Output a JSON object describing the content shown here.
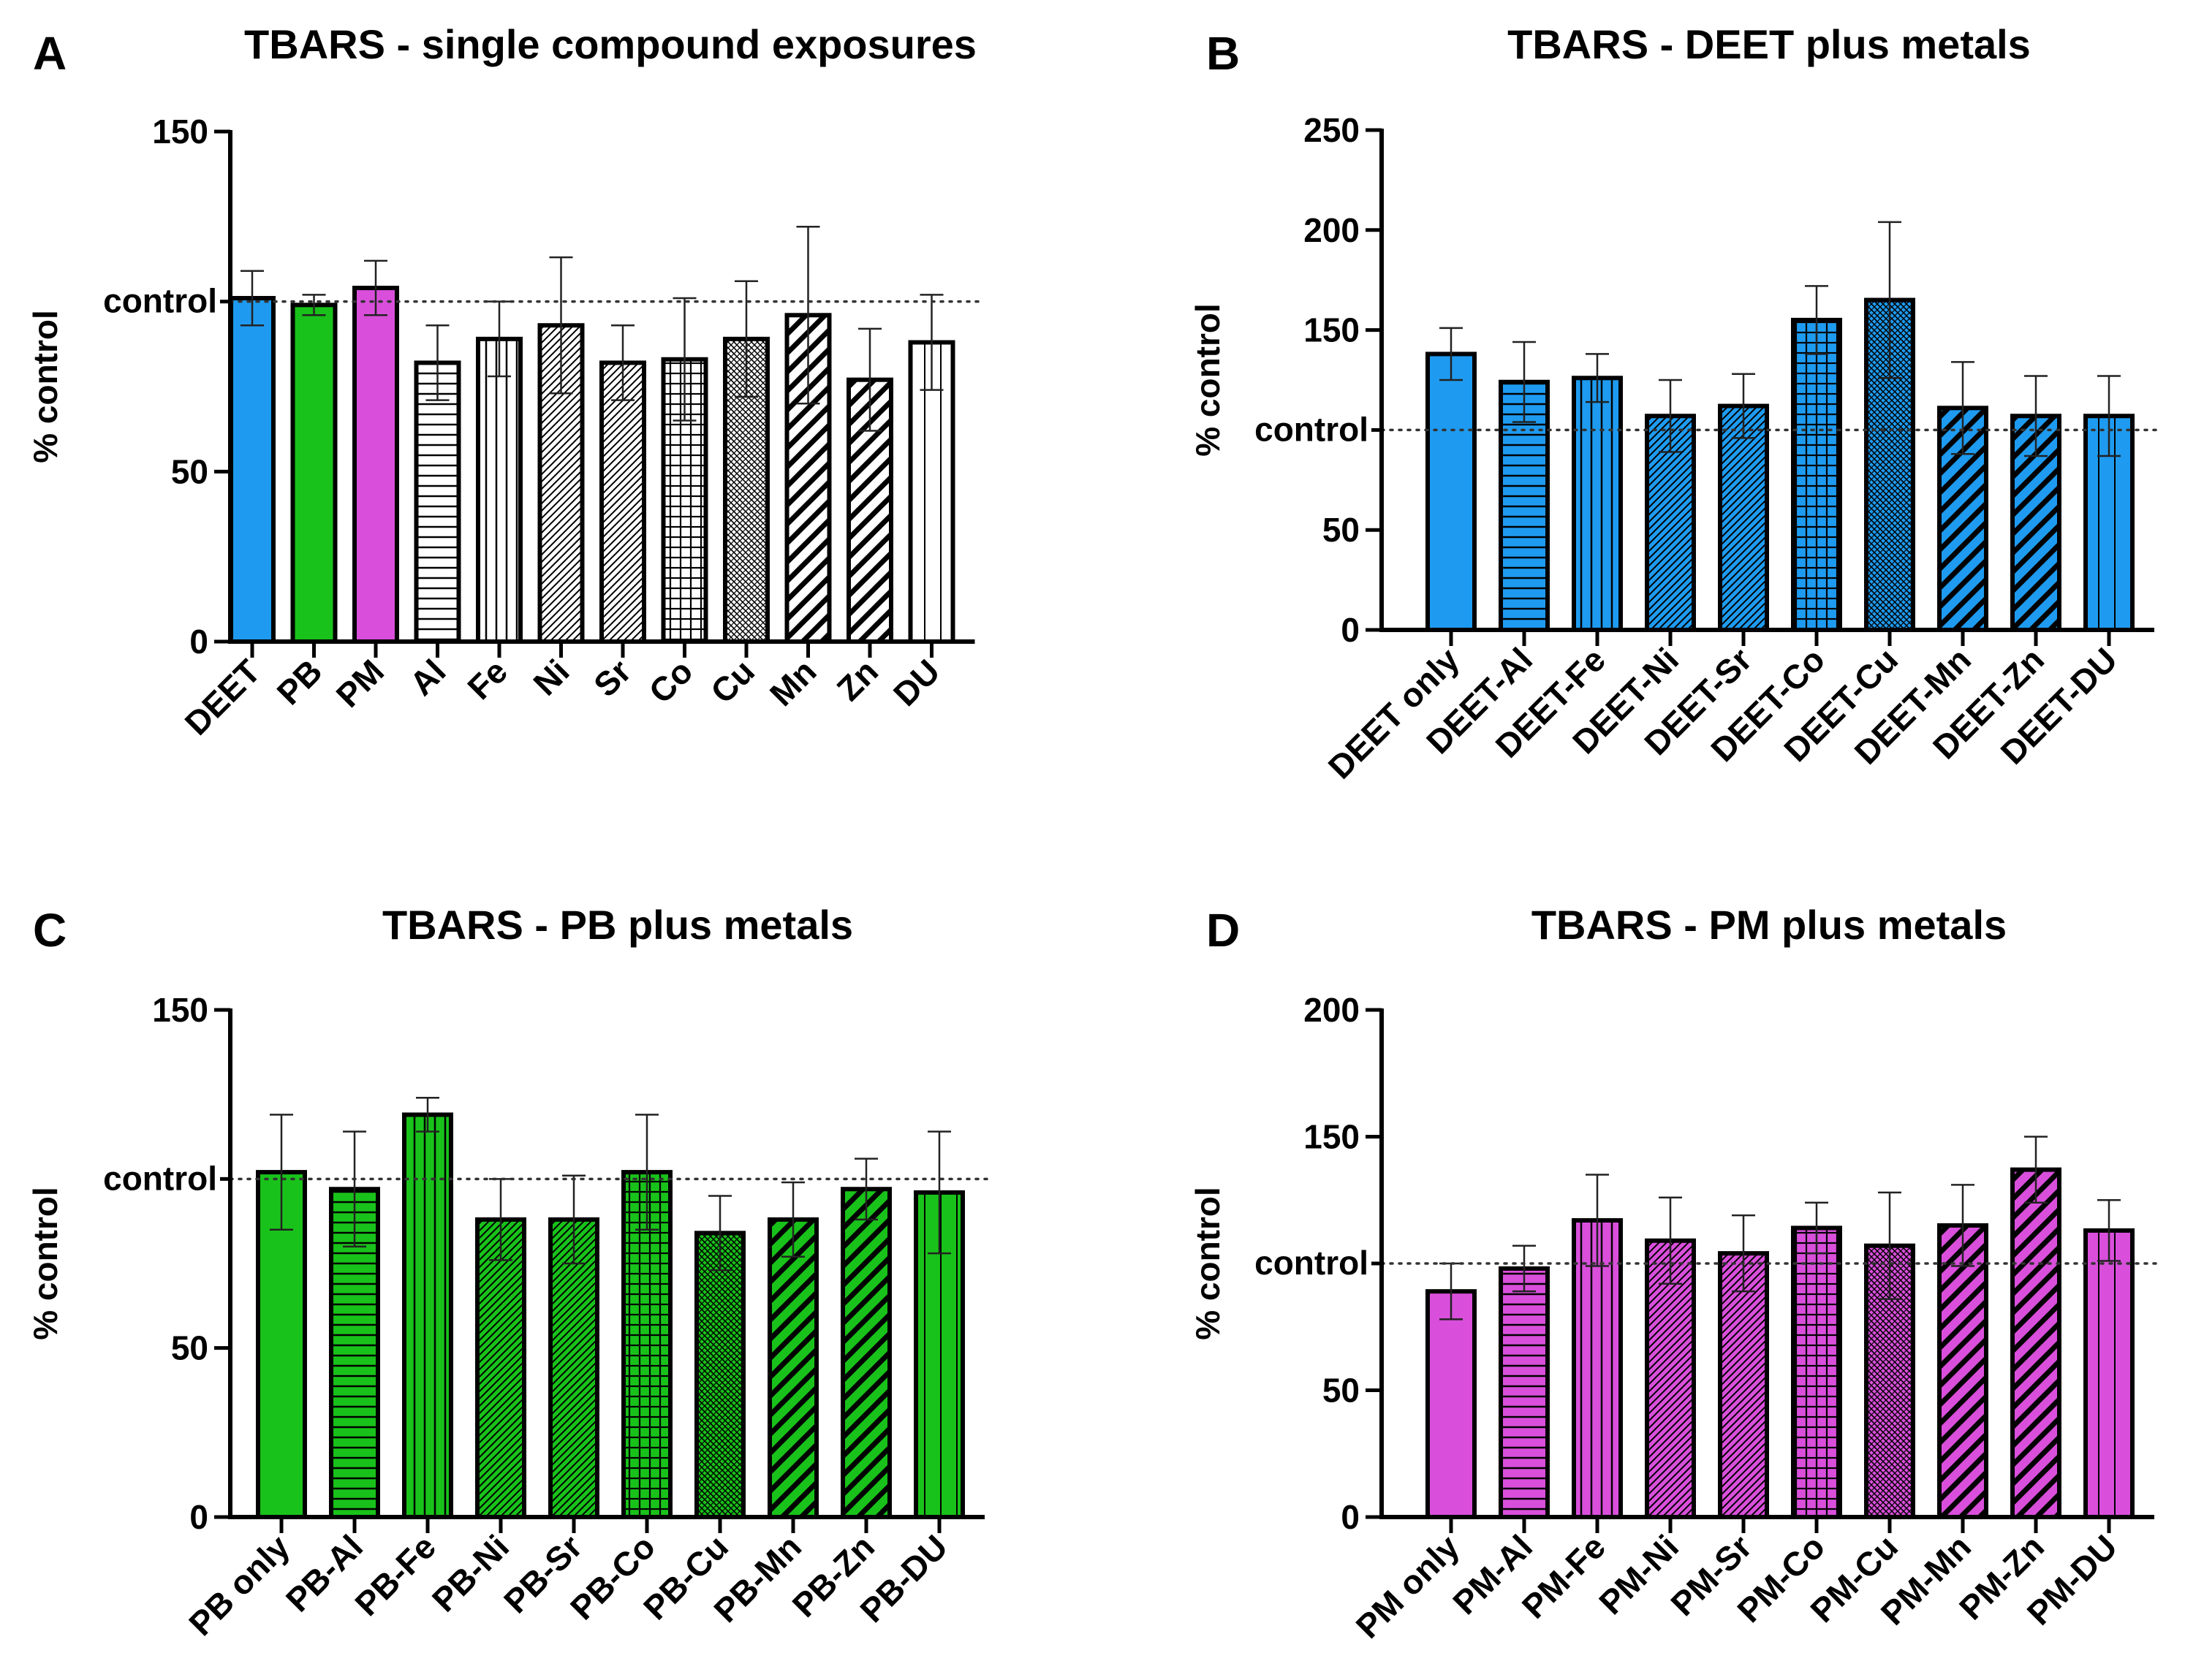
{
  "chart_data": [
    {
      "panel": "A",
      "type": "bar",
      "title": "TBARS - single compound exposures",
      "ylabel": "% control",
      "xlabel": "",
      "ylim": [
        0,
        150
      ],
      "yticks": [
        0,
        50,
        150
      ],
      "reference_line": {
        "value": 100,
        "label": "control"
      },
      "categories": [
        "DEET",
        "PB",
        "PM",
        "Al",
        "Fe",
        "Ni",
        "Sr",
        "Co",
        "Cu",
        "Mn",
        "Zn",
        "DU"
      ],
      "values": [
        101,
        99,
        104,
        82,
        89,
        93,
        82,
        83,
        89,
        96,
        77,
        88
      ],
      "errors": [
        8,
        3,
        8,
        11,
        11,
        20,
        11,
        18,
        17,
        26,
        15,
        14
      ],
      "fills": [
        "#1E9BF0",
        "#19C21A",
        "#D94FDB",
        "#FFFFFF",
        "#FFFFFF",
        "#FFFFFF",
        "#FFFFFF",
        "#FFFFFF",
        "#FFFFFF",
        "#FFFFFF",
        "#FFFFFF",
        "#FFFFFF"
      ],
      "patterns": [
        "solid",
        "solid",
        "solid",
        "hlines",
        "vlines",
        "diag-fine",
        "diag-fine",
        "grid",
        "diag-dense",
        "diag-bold",
        "diag-bold",
        "vlines-wide"
      ]
    },
    {
      "panel": "B",
      "type": "bar",
      "title": "TBARS - DEET plus metals",
      "ylabel": "% control",
      "xlabel": "",
      "ylim": [
        0,
        250
      ],
      "yticks": [
        0,
        50,
        150,
        200,
        250
      ],
      "reference_line": {
        "value": 100,
        "label": "control"
      },
      "categories": [
        "DEET only",
        "DEET-Al",
        "DEET-Fe",
        "DEET-Ni",
        "DEET-Sr",
        "DEET-Co",
        "DEET-Cu",
        "DEET-Mn",
        "DEET-Zn",
        "DEET-DU"
      ],
      "values": [
        138,
        124,
        126,
        107,
        112,
        155,
        165,
        111,
        107,
        107
      ],
      "errors": [
        13,
        20,
        12,
        18,
        16,
        17,
        39,
        23,
        20,
        20
      ],
      "fills": [
        "#1E9BF0",
        "#1E9BF0",
        "#1E9BF0",
        "#1E9BF0",
        "#1E9BF0",
        "#1E9BF0",
        "#1E9BF0",
        "#1E9BF0",
        "#1E9BF0",
        "#1E9BF0"
      ],
      "patterns": [
        "solid",
        "hlines",
        "vlines",
        "diag-fine",
        "diag-fine",
        "grid",
        "diag-dense",
        "diag-bold",
        "diag-bold",
        "vlines-wide"
      ]
    },
    {
      "panel": "C",
      "type": "bar",
      "title": "TBARS - PB plus metals",
      "ylabel": "% control",
      "xlabel": "",
      "ylim": [
        0,
        150
      ],
      "yticks": [
        0,
        50,
        150
      ],
      "reference_line": {
        "value": 100,
        "label": "control"
      },
      "categories": [
        "PB only",
        "PB-Al",
        "PB-Fe",
        "PB-Ni",
        "PB-Sr",
        "PB-Co",
        "PB-Cu",
        "PB-Mn",
        "PB-Zn",
        "PB-DU"
      ],
      "values": [
        102,
        97,
        119,
        88,
        88,
        102,
        84,
        88,
        97,
        96
      ],
      "errors": [
        17,
        17,
        5,
        12,
        13,
        17,
        11,
        11,
        9,
        18
      ],
      "fills": [
        "#19C21A",
        "#19C21A",
        "#19C21A",
        "#19C21A",
        "#19C21A",
        "#19C21A",
        "#19C21A",
        "#19C21A",
        "#19C21A",
        "#19C21A"
      ],
      "patterns": [
        "solid",
        "hlines",
        "vlines",
        "diag-fine",
        "diag-fine",
        "grid",
        "diag-dense",
        "diag-bold",
        "diag-bold",
        "vlines-wide"
      ]
    },
    {
      "panel": "D",
      "type": "bar",
      "title": "TBARS - PM plus metals",
      "ylabel": "% control",
      "xlabel": "",
      "ylim": [
        0,
        200
      ],
      "yticks": [
        0,
        50,
        150,
        200
      ],
      "reference_line": {
        "value": 100,
        "label": "control"
      },
      "categories": [
        "PM only",
        "PM-Al",
        "PM-Fe",
        "PM-Ni",
        "PM-Sr",
        "PM-Co",
        "PM-Cu",
        "PM-Mn",
        "PM-Zn",
        "PM-DU"
      ],
      "values": [
        89,
        98,
        117,
        109,
        104,
        114,
        107,
        115,
        137,
        113
      ],
      "errors": [
        11,
        9,
        18,
        17,
        15,
        10,
        21,
        16,
        13,
        12
      ],
      "fills": [
        "#D94FDB",
        "#D94FDB",
        "#D94FDB",
        "#D94FDB",
        "#D94FDB",
        "#D94FDB",
        "#D94FDB",
        "#D94FDB",
        "#D94FDB",
        "#D94FDB"
      ],
      "patterns": [
        "solid",
        "hlines",
        "vlines",
        "diag-fine",
        "diag-fine",
        "grid",
        "diag-dense",
        "diag-bold",
        "diag-bold",
        "vlines-wide"
      ]
    }
  ]
}
